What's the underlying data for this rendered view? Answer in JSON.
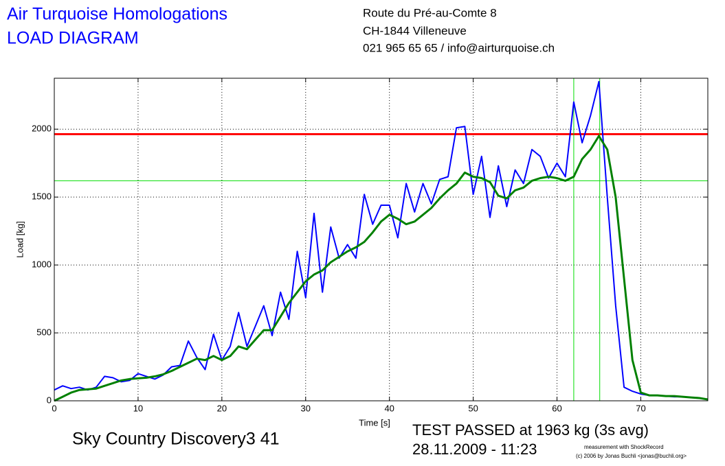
{
  "header": {
    "title": "Air Turquoise Homologations",
    "subtitle": "LOAD DIAGRAM",
    "address": [
      "Route du Pré-au-Comte 8",
      "CH-1844 Villeneuve",
      "021 965 65 65 / info@airturquoise.ch"
    ]
  },
  "chart_data": {
    "type": "line",
    "x_label": "Time [s]",
    "y_label": "Load [kg]",
    "xlim": [
      0,
      78
    ],
    "ylim": [
      0,
      2375
    ],
    "xticks": [
      0,
      10,
      20,
      30,
      40,
      50,
      60,
      70
    ],
    "yticks": [
      0,
      500,
      1000,
      1500,
      2000
    ],
    "grid": true,
    "x": [
      0,
      1,
      2,
      3,
      4,
      5,
      6,
      7,
      8,
      9,
      10,
      11,
      12,
      13,
      14,
      15,
      16,
      17,
      18,
      19,
      20,
      21,
      22,
      23,
      24,
      25,
      26,
      27,
      28,
      29,
      30,
      31,
      32,
      33,
      34,
      35,
      36,
      37,
      38,
      39,
      40,
      41,
      42,
      43,
      44,
      45,
      46,
      47,
      48,
      49,
      50,
      51,
      52,
      53,
      54,
      55,
      56,
      57,
      58,
      59,
      60,
      61,
      62,
      63,
      64,
      65,
      66,
      67,
      68,
      69,
      70,
      71,
      72,
      73,
      74,
      75,
      76,
      77,
      78
    ],
    "series": [
      {
        "color": "#0000ff",
        "values": [
          80,
          110,
          90,
          100,
          80,
          100,
          180,
          170,
          140,
          150,
          200,
          180,
          160,
          190,
          250,
          260,
          440,
          320,
          230,
          490,
          300,
          400,
          650,
          400,
          550,
          700,
          480,
          800,
          600,
          1100,
          760,
          1380,
          800,
          1280,
          1050,
          1150,
          1050,
          1520,
          1300,
          1440,
          1440,
          1200,
          1600,
          1390,
          1600,
          1450,
          1630,
          1650,
          2010,
          2020,
          1520,
          1800,
          1350,
          1730,
          1430,
          1700,
          1600,
          1850,
          1800,
          1640,
          1750,
          1650,
          2200,
          1900,
          2100,
          2350,
          1500,
          700,
          100,
          70,
          50,
          40,
          40,
          35,
          30,
          30,
          25,
          20,
          10
        ]
      },
      {
        "color": "#008000",
        "values": [
          0,
          30,
          60,
          80,
          85,
          90,
          110,
          130,
          150,
          160,
          165,
          170,
          180,
          195,
          220,
          250,
          280,
          310,
          300,
          330,
          300,
          330,
          400,
          380,
          450,
          520,
          520,
          620,
          720,
          800,
          880,
          930,
          960,
          1020,
          1060,
          1100,
          1130,
          1170,
          1240,
          1320,
          1370,
          1340,
          1300,
          1320,
          1370,
          1420,
          1490,
          1550,
          1600,
          1680,
          1650,
          1640,
          1610,
          1510,
          1490,
          1550,
          1570,
          1620,
          1640,
          1650,
          1640,
          1620,
          1650,
          1780,
          1850,
          1950,
          1850,
          1500,
          900,
          300,
          60,
          40,
          40,
          35,
          35,
          30,
          25,
          20,
          10
        ]
      }
    ],
    "hlines": [
      {
        "value": 1963,
        "color": "#ff0000"
      },
      {
        "value": 1620,
        "color": "#00dd00"
      }
    ],
    "vlines": [
      {
        "value": 62,
        "color": "#00dd00"
      },
      {
        "value": 65.1,
        "color": "#00dd00"
      }
    ]
  },
  "footer": {
    "glider": "Sky Country Discovery3 41",
    "result": "TEST PASSED at 1963 kg (3s avg)",
    "date": "28.11.2009 - 11:23",
    "credit1": "measurement with ShockRecord",
    "credit2": "(c) 2006 by Jonas Buchli <jonas@buchli.org>"
  }
}
